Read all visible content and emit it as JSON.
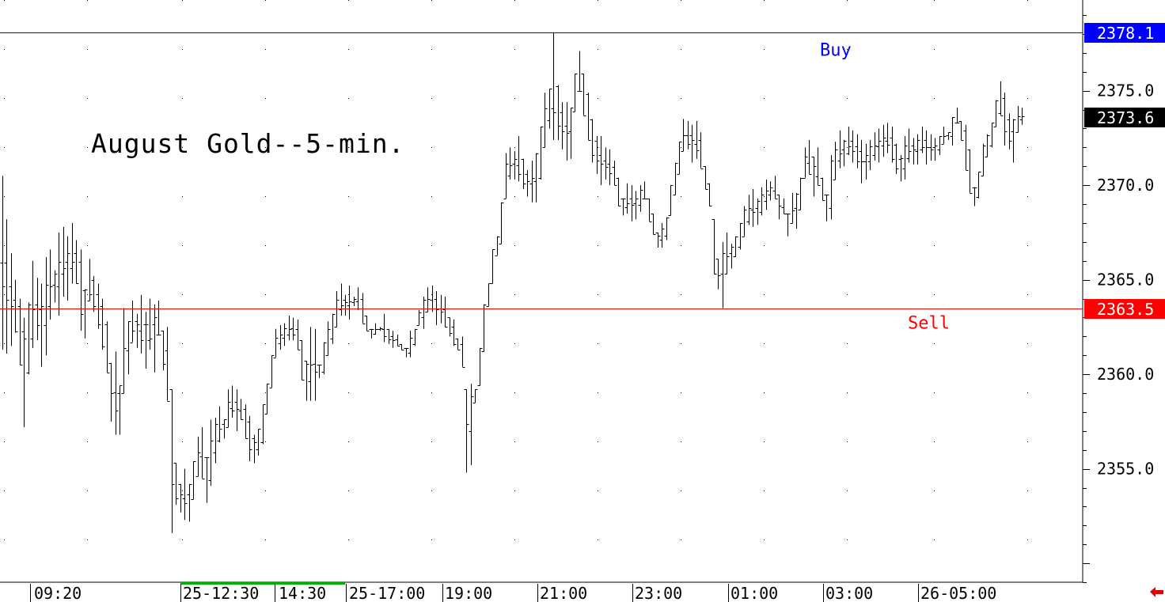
{
  "chart_data": {
    "type": "ohlc",
    "title": "August Gold--5-min.",
    "ylim": [
      2349.0,
      2379.8
    ],
    "y_ticks": [
      "2375.0",
      "2370.0",
      "2365.0",
      "2360.0",
      "2355.0"
    ],
    "x_ticks": [
      "09:20",
      "25-12:30",
      "14:30",
      "25-17:00",
      "19:00",
      "21:00",
      "23:00",
      "01:00",
      "03:00",
      "26-05:00"
    ],
    "session_marker_color": "#00b000",
    "levels": [
      {
        "name": "Buy",
        "value": 2378.1,
        "value_label": "2378.1",
        "color": "#0000ff",
        "badge_color": "#0000ff"
      },
      {
        "name": "Sell",
        "value": 2363.5,
        "value_label": "2363.5",
        "color": "#ff0000",
        "badge_color": "#ff0000"
      }
    ],
    "last_price": {
      "value": 2373.6,
      "value_label": "2373.6",
      "badge_color": "#000000"
    },
    "bars_hl": [
      [
        2370.5,
        2361.3
      ],
      [
        2368.2,
        2361.1
      ],
      [
        2366.4,
        2361.5
      ],
      [
        2365.0,
        2362.2
      ],
      [
        2364.0,
        2360.5
      ],
      [
        2363.0,
        2357.2
      ],
      [
        2363.8,
        2360.0
      ],
      [
        2366.0,
        2361.4
      ],
      [
        2365.1,
        2361.8
      ],
      [
        2364.8,
        2360.4
      ],
      [
        2366.2,
        2361.0
      ],
      [
        2366.6,
        2362.9
      ],
      [
        2365.5,
        2363.8
      ],
      [
        2367.5,
        2363.1
      ],
      [
        2367.8,
        2364.1
      ],
      [
        2367.3,
        2363.9
      ],
      [
        2368.0,
        2364.8
      ],
      [
        2367.1,
        2364.8
      ],
      [
        2366.6,
        2362.3
      ],
      [
        2364.5,
        2361.9
      ],
      [
        2366.1,
        2363.9
      ],
      [
        2365.2,
        2363.3
      ],
      [
        2364.8,
        2362.4
      ],
      [
        2364.0,
        2361.3
      ],
      [
        2362.8,
        2360.1
      ],
      [
        2360.6,
        2357.5
      ],
      [
        2361.2,
        2356.8
      ],
      [
        2359.4,
        2356.8
      ],
      [
        2363.5,
        2359.0
      ],
      [
        2362.8,
        2360.0
      ],
      [
        2363.9,
        2361.7
      ],
      [
        2363.2,
        2361.4
      ],
      [
        2364.2,
        2361.1
      ],
      [
        2363.3,
        2360.3
      ],
      [
        2364.0,
        2361.3
      ],
      [
        2363.7,
        2360.1
      ],
      [
        2363.9,
        2362.1
      ],
      [
        2362.3,
        2360.2
      ],
      [
        2362.5,
        2358.6
      ],
      [
        2359.2,
        2351.6
      ],
      [
        2355.3,
        2353.1
      ],
      [
        2354.2,
        2352.7
      ],
      [
        2355.0,
        2352.3
      ],
      [
        2354.2,
        2352.2
      ],
      [
        2355.4,
        2353.4
      ],
      [
        2356.7,
        2354.6
      ],
      [
        2357.2,
        2354.5
      ],
      [
        2355.6,
        2353.2
      ],
      [
        2357.6,
        2354.1
      ],
      [
        2357.7,
        2355.3
      ],
      [
        2358.3,
        2356.4
      ],
      [
        2357.6,
        2356.6
      ],
      [
        2359.2,
        2357.2
      ],
      [
        2359.4,
        2357.7
      ],
      [
        2359.2,
        2357.0
      ],
      [
        2358.7,
        2357.6
      ],
      [
        2358.4,
        2356.6
      ],
      [
        2357.8,
        2355.4
      ],
      [
        2356.8,
        2355.3
      ],
      [
        2357.1,
        2355.7
      ],
      [
        2358.4,
        2356.3
      ],
      [
        2359.5,
        2357.9
      ],
      [
        2361.0,
        2359.3
      ],
      [
        2362.4,
        2360.9
      ],
      [
        2362.6,
        2361.3
      ],
      [
        2362.7,
        2361.5
      ],
      [
        2363.1,
        2361.8
      ],
      [
        2363.0,
        2361.8
      ],
      [
        2362.9,
        2361.3
      ],
      [
        2361.8,
        2359.7
      ],
      [
        2360.7,
        2358.6
      ],
      [
        2362.5,
        2358.6
      ],
      [
        2362.4,
        2358.6
      ],
      [
        2360.5,
        2359.8
      ],
      [
        2361.7,
        2360.0
      ],
      [
        2362.8,
        2361.0
      ],
      [
        2363.2,
        2361.6
      ],
      [
        2364.4,
        2362.5
      ],
      [
        2364.8,
        2363.1
      ],
      [
        2364.2,
        2363.1
      ],
      [
        2364.7,
        2362.9
      ],
      [
        2364.1,
        2363.6
      ],
      [
        2364.6,
        2363.4
      ],
      [
        2364.3,
        2362.7
      ],
      [
        2363.1,
        2362.3
      ],
      [
        2362.4,
        2361.9
      ],
      [
        2362.7,
        2362.1
      ],
      [
        2362.5,
        2362.3
      ],
      [
        2363.2,
        2361.7
      ],
      [
        2362.4,
        2361.6
      ],
      [
        2362.3,
        2361.4
      ],
      [
        2362.1,
        2361.5
      ],
      [
        2361.6,
        2361.3
      ],
      [
        2361.4,
        2360.9
      ],
      [
        2362.3,
        2360.9
      ],
      [
        2362.4,
        2361.5
      ],
      [
        2363.4,
        2362.6
      ],
      [
        2364.1,
        2362.4
      ],
      [
        2364.6,
        2363.3
      ],
      [
        2364.7,
        2363.3
      ],
      [
        2364.4,
        2362.6
      ],
      [
        2364.2,
        2362.7
      ],
      [
        2364.1,
        2362.5
      ],
      [
        2363.0,
        2362.0
      ],
      [
        2362.9,
        2361.5
      ],
      [
        2361.9,
        2361.3
      ],
      [
        2362.0,
        2360.4
      ],
      [
        2359.2,
        2354.8
      ],
      [
        2359.5,
        2355.2
      ],
      [
        2359.2,
        2358.5
      ],
      [
        2361.4,
        2359.4
      ],
      [
        2363.7,
        2361.2
      ],
      [
        2364.8,
        2363.6
      ],
      [
        2366.6,
        2364.8
      ],
      [
        2367.3,
        2366.3
      ],
      [
        2369.1,
        2366.9
      ],
      [
        2371.7,
        2369.3
      ],
      [
        2372.0,
        2370.3
      ],
      [
        2371.8,
        2370.3
      ],
      [
        2372.6,
        2370.2
      ],
      [
        2371.4,
        2369.8
      ],
      [
        2370.8,
        2369.4
      ],
      [
        2371.3,
        2369.1
      ],
      [
        2371.7,
        2369.1
      ],
      [
        2373.1,
        2370.3
      ],
      [
        2374.9,
        2372.0
      ],
      [
        2375.1,
        2373.0
      ],
      [
        2378.1,
        2372.4
      ],
      [
        2375.3,
        2372.4
      ],
      [
        2374.4,
        2371.9
      ],
      [
        2374.4,
        2371.3
      ],
      [
        2374.1,
        2371.4
      ],
      [
        2375.9,
        2373.9
      ],
      [
        2377.1,
        2375.0
      ],
      [
        2375.9,
        2373.7
      ],
      [
        2374.9,
        2372.4
      ],
      [
        2373.5,
        2371.2
      ],
      [
        2372.6,
        2370.6
      ],
      [
        2372.6,
        2370.0
      ],
      [
        2372.0,
        2370.3
      ],
      [
        2371.9,
        2370.0
      ],
      [
        2371.3,
        2370.0
      ],
      [
        2370.4,
        2368.9
      ],
      [
        2369.3,
        2368.4
      ],
      [
        2370.1,
        2368.5
      ],
      [
        2370.0,
        2368.1
      ],
      [
        2369.7,
        2368.2
      ],
      [
        2370.0,
        2368.6
      ],
      [
        2370.2,
        2369.3
      ],
      [
        2369.3,
        2368.1
      ],
      [
        2368.5,
        2367.4
      ],
      [
        2367.5,
        2366.7
      ],
      [
        2368.0,
        2366.7
      ],
      [
        2368.3,
        2367.1
      ],
      [
        2370.0,
        2368.4
      ],
      [
        2371.2,
        2369.5
      ],
      [
        2372.3,
        2370.6
      ],
      [
        2373.5,
        2371.8
      ],
      [
        2373.4,
        2371.9
      ],
      [
        2373.2,
        2371.2
      ],
      [
        2373.4,
        2371.4
      ],
      [
        2372.8,
        2370.9
      ],
      [
        2371.0,
        2369.8
      ],
      [
        2370.1,
        2368.9
      ],
      [
        2368.2,
        2365.3
      ],
      [
        2366.1,
        2364.5
      ],
      [
        2367.0,
        2363.5
      ],
      [
        2367.5,
        2365.3
      ],
      [
        2366.9,
        2365.6
      ],
      [
        2367.3,
        2366.2
      ],
      [
        2368.0,
        2366.6
      ],
      [
        2368.9,
        2367.3
      ],
      [
        2369.5,
        2367.9
      ],
      [
        2369.8,
        2367.8
      ],
      [
        2369.3,
        2367.9
      ],
      [
        2369.9,
        2368.4
      ],
      [
        2370.3,
        2368.7
      ],
      [
        2370.2,
        2369.2
      ],
      [
        2370.5,
        2369.3
      ],
      [
        2369.5,
        2368.2
      ],
      [
        2369.3,
        2368.5
      ],
      [
        2368.5,
        2367.3
      ],
      [
        2369.6,
        2368.0
      ],
      [
        2369.6,
        2367.7
      ],
      [
        2370.4,
        2368.7
      ],
      [
        2372.0,
        2370.4
      ],
      [
        2372.4,
        2370.6
      ],
      [
        2371.5,
        2369.4
      ],
      [
        2372.0,
        2370.0
      ],
      [
        2370.4,
        2369.2
      ],
      [
        2369.5,
        2368.1
      ],
      [
        2371.6,
        2368.2
      ],
      [
        2372.3,
        2370.3
      ],
      [
        2372.9,
        2370.9
      ],
      [
        2372.4,
        2371.0
      ],
      [
        2373.1,
        2371.6
      ],
      [
        2372.9,
        2371.2
      ],
      [
        2372.7,
        2370.9
      ],
      [
        2372.4,
        2370.1
      ],
      [
        2372.2,
        2370.3
      ],
      [
        2372.4,
        2370.8
      ],
      [
        2372.8,
        2371.3
      ],
      [
        2373.0,
        2371.2
      ],
      [
        2373.2,
        2371.5
      ],
      [
        2373.3,
        2371.7
      ],
      [
        2373.1,
        2371.2
      ],
      [
        2372.2,
        2370.6
      ],
      [
        2371.6,
        2370.2
      ],
      [
        2372.6,
        2370.3
      ],
      [
        2373.0,
        2371.2
      ],
      [
        2372.5,
        2371.1
      ],
      [
        2372.7,
        2371.1
      ],
      [
        2373.1,
        2371.7
      ],
      [
        2372.9,
        2371.1
      ],
      [
        2372.7,
        2371.3
      ],
      [
        2372.5,
        2371.3
      ],
      [
        2372.6,
        2371.6
      ],
      [
        2373.1,
        2372.2
      ],
      [
        2372.8,
        2372.4
      ],
      [
        2373.6,
        2372.1
      ],
      [
        2374.1,
        2373.3
      ],
      [
        2373.4,
        2372.4
      ],
      [
        2373.2,
        2370.8
      ],
      [
        2371.9,
        2369.6
      ],
      [
        2369.9,
        2368.9
      ],
      [
        2370.7,
        2369.3
      ],
      [
        2372.2,
        2370.5
      ],
      [
        2372.7,
        2371.5
      ],
      [
        2373.3,
        2372.0
      ],
      [
        2374.5,
        2373.1
      ],
      [
        2375.5,
        2373.7
      ],
      [
        2374.9,
        2372.1
      ],
      [
        2373.8,
        2371.9
      ],
      [
        2373.5,
        2371.2
      ],
      [
        2374.2,
        2372.8
      ],
      [
        2374.1,
        2373.2
      ]
    ]
  }
}
